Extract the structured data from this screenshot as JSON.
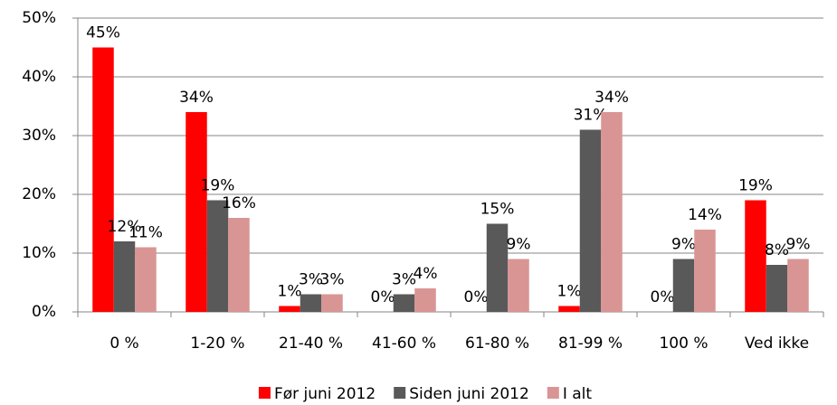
{
  "chart_data": {
    "type": "bar",
    "categories": [
      "0 %",
      "1-20 %",
      "21-40 %",
      "41-60 %",
      "61-80 %",
      "81-99 %",
      "100 %",
      "Ved ikke"
    ],
    "series": [
      {
        "name": "Før juni 2012",
        "color": "#ff0000",
        "values": [
          45,
          34,
          1,
          0,
          0,
          1,
          0,
          19
        ],
        "value_labels": [
          "45%",
          "34%",
          "1%",
          "0%",
          "0%",
          "1%",
          "0%",
          "19%"
        ]
      },
      {
        "name": "Siden juni 2012",
        "color": "#595959",
        "values": [
          12,
          19,
          3,
          3,
          15,
          31,
          9,
          8
        ],
        "value_labels": [
          "12%",
          "19%",
          "3%",
          "3%",
          "15%",
          "31%",
          "9%",
          "8%"
        ]
      },
      {
        "name": "I alt",
        "color": "#d99594",
        "values": [
          11,
          16,
          3,
          4,
          9,
          34,
          14,
          9
        ],
        "value_labels": [
          "11%",
          "16%",
          "3%",
          "4%",
          "9%",
          "34%",
          "14%",
          "9%"
        ]
      }
    ],
    "ylim": [
      0,
      50
    ],
    "yticks": [
      {
        "value": 0,
        "label": "0%"
      },
      {
        "value": 10,
        "label": "10%"
      },
      {
        "value": 20,
        "label": "20%"
      },
      {
        "value": 30,
        "label": "30%"
      },
      {
        "value": 40,
        "label": "40%"
      },
      {
        "value": 50,
        "label": "50%"
      }
    ],
    "grid": true,
    "legend": "bottom"
  }
}
